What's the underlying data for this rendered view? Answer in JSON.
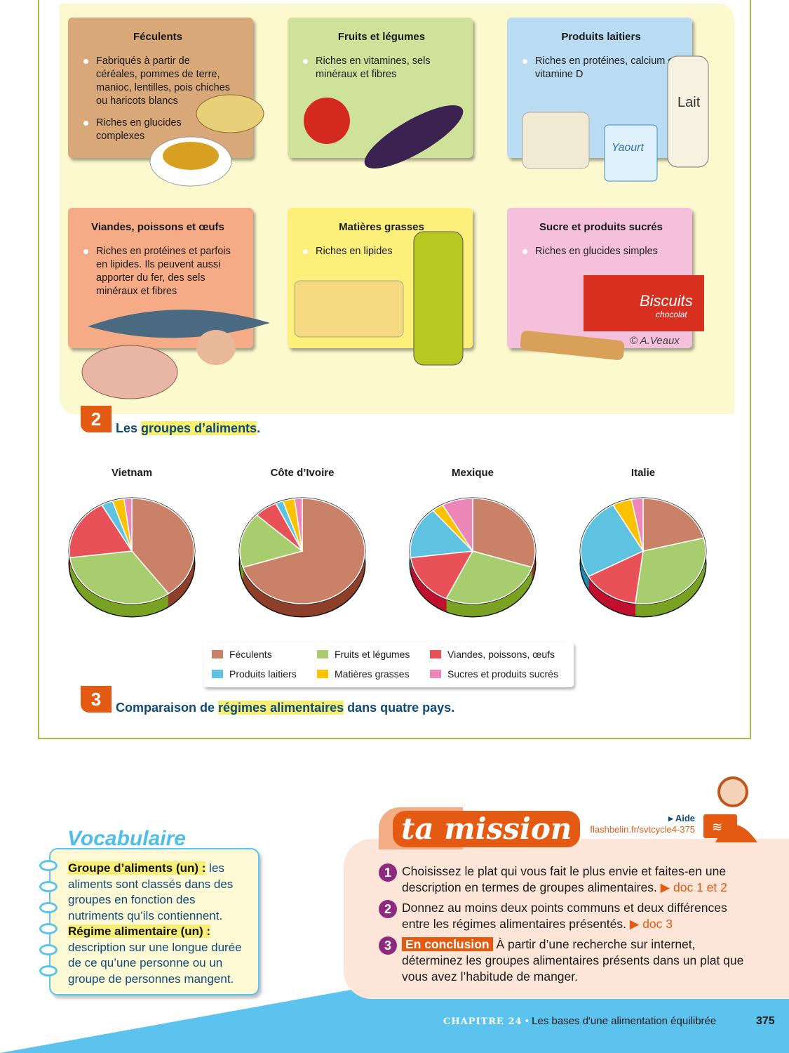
{
  "doc2": {
    "number": "2",
    "title_pre": "Les ",
    "title_highlight": "groupes d’aliments",
    "title_post": ".",
    "groups": [
      {
        "title": "Féculents",
        "color": "#d8a878",
        "bullets": [
          "Fabriqués à partir de céréales, pommes de terre, manioc, lentilles, pois chiches ou haricots blancs",
          "Riches en glucides complexes"
        ]
      },
      {
        "title": "Fruits et légumes",
        "color": "#cfe29a",
        "bullets": [
          "Riches en vitamines, sels minéraux et fibres"
        ]
      },
      {
        "title": "Produits laitiers",
        "color": "#b9dcf2",
        "bullets": [
          "Riches en protéines, calcium et vitamine D"
        ]
      },
      {
        "title": "Viandes, poissons et œufs",
        "color": "#f5ab86",
        "bullets": [
          "Riches en protéines et parfois en lipides. Ils peuvent aussi apporter du fer, des sels minéraux et fibres"
        ]
      },
      {
        "title": "Matières grasses",
        "color": "#fdf07a",
        "bullets": [
          "Riches en lipides"
        ]
      },
      {
        "title": "Sucre et produits sucrés",
        "color": "#f5c0dc",
        "bullets": [
          "Riches en glucides simples"
        ]
      }
    ],
    "illustration_labels": {
      "milk": "Lait",
      "yogurt": "Yaourt",
      "biscuits": "Biscuits",
      "biscuits_sub": "chocolat",
      "credit": "© A.Veaux"
    }
  },
  "doc3": {
    "number": "3",
    "title_pre": "Comparaison de ",
    "title_highlight": "régimes alimentaires",
    "title_post": " dans quatre pays."
  },
  "chart_data": {
    "type": "pie",
    "categories": [
      "Féculents",
      "Fruits et légumes",
      "Viandes, poissons, œufs",
      "Produits laitiers",
      "Matières grasses",
      "Sucres et produits sucrés"
    ],
    "colors": [
      "#c98268",
      "#a8cd6e",
      "#e85158",
      "#5ec3e0",
      "#fcc200",
      "#ef86b8"
    ],
    "side_colors": [
      "#8e3f2a",
      "#79a223",
      "#c0102f",
      "#1b8fb0",
      "#d9a000",
      "#c65a95"
    ],
    "legend_order": [
      0,
      1,
      2,
      3,
      4,
      5
    ],
    "legend_placement": "bottom",
    "charts": [
      {
        "title": "Vietnam",
        "values": [
          40,
          33,
          19,
          3,
          3,
          2
        ]
      },
      {
        "title": "Côte d’Ivoire",
        "values": [
          70,
          17,
          6,
          2,
          3,
          2
        ]
      },
      {
        "title": "Mexique",
        "values": [
          30,
          27,
          16,
          16,
          3,
          8
        ]
      },
      {
        "title": "Italie",
        "values": [
          21,
          31,
          15,
          25,
          5,
          3
        ]
      }
    ],
    "unit": "%"
  },
  "vocab": {
    "title": "Vocabulaire",
    "entries": [
      {
        "term": "Groupe d’aliments (un) :",
        "definition": " les aliments sont classés dans des groupes en fonction des nutriments qu’ils contiennent."
      },
      {
        "term": "Régime alimentaire (un) :",
        "definition": " description sur une longue durée de ce qu’une personne ou un groupe de personnes mangent."
      }
    ]
  },
  "mission": {
    "title": "ta mission",
    "aide_label": "▸ Aide",
    "aide_link": "flashbelin.fr/svtcycle4-375",
    "questions": [
      {
        "n": "1",
        "text": "Choisissez le plat qui vous fait le plus envie et faites-en une description en termes de groupes alimentaires. ",
        "ref": "▶ doc 1 et 2"
      },
      {
        "n": "2",
        "text": "Donnez au moins deux points communs et deux différences entre les régimes alimentaires présentés. ",
        "ref": "▶ doc 3"
      },
      {
        "n": "3",
        "tag": "En conclusion",
        "text": " À partir d’une recherche sur internet, déterminez les groupes alimentaires présents dans un plat que vous avez l’habitude de manger."
      }
    ]
  },
  "footer": {
    "chapter": "CHAPITRE 24",
    "separator": " • ",
    "title": "Les bases d'une alimentation équilibrée",
    "page": "375",
    "color": "#5cc3ee"
  }
}
